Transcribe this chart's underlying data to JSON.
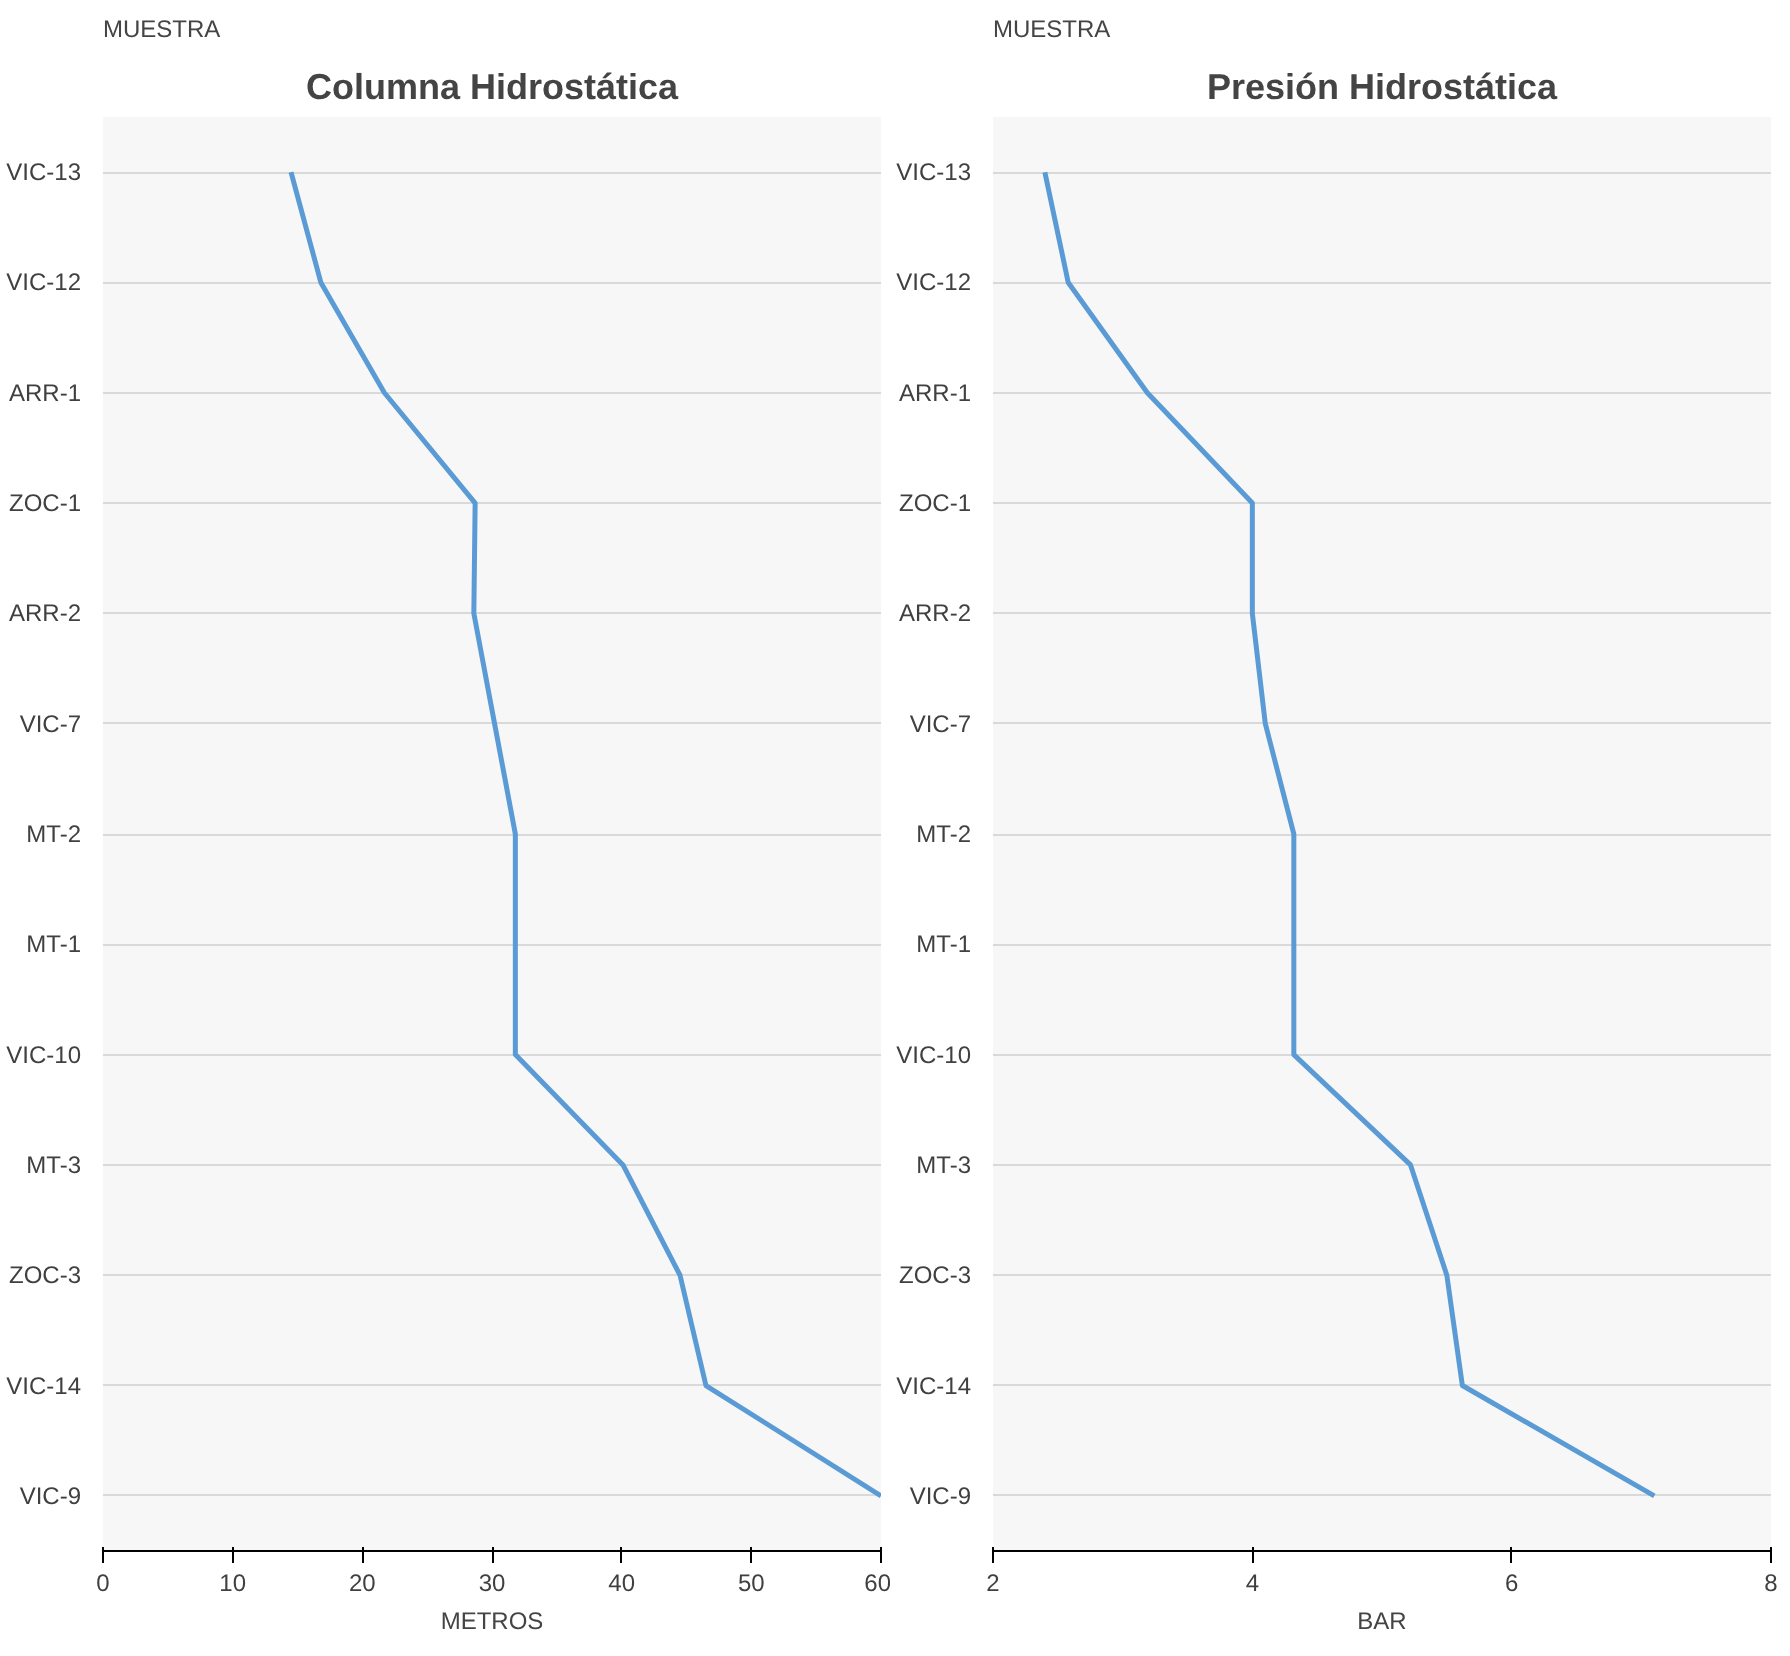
{
  "chart_data": [
    {
      "type": "line",
      "orientation": "horizontal",
      "title": "Columna Hidrostática",
      "ylabel": "MUESTRA",
      "xlabel": "METROS",
      "categories": [
        "VIC-13",
        "VIC-12",
        "ARR-1",
        "ZOC-1",
        "ARR-2",
        "VIC-7",
        "MT-2",
        "MT-1",
        "VIC-10",
        "MT-3",
        "ZOC-3",
        "VIC-14",
        "VIC-9"
      ],
      "series": [
        {
          "color": "#5b9bd5",
          "values": [
            14.5,
            16.8,
            21.7,
            28.7,
            28.6,
            30.2,
            31.8,
            31.8,
            31.8,
            40.1,
            44.5,
            46.5,
            60
          ]
        }
      ],
      "xlim": [
        0,
        60
      ],
      "xticks": [
        0,
        10,
        20,
        30,
        40,
        50,
        60
      ],
      "grid": "y"
    },
    {
      "type": "line",
      "orientation": "horizontal",
      "title": "Presión Hidrostática",
      "ylabel": "MUESTRA",
      "xlabel": "BAR",
      "categories": [
        "VIC-13",
        "VIC-12",
        "ARR-1",
        "ZOC-1",
        "ARR-2",
        "VIC-7",
        "MT-2",
        "MT-1",
        "VIC-10",
        "MT-3",
        "ZOC-3",
        "VIC-14",
        "VIC-9"
      ],
      "series": [
        {
          "color": "#5b9bd5",
          "values": [
            2.4,
            2.58,
            3.19,
            4.0,
            4.0,
            4.1,
            4.32,
            4.32,
            4.32,
            5.22,
            5.5,
            5.62,
            7.1
          ]
        }
      ],
      "xlim": [
        2,
        8
      ],
      "xticks": [
        2,
        4,
        6,
        8
      ],
      "grid": "y"
    }
  ]
}
